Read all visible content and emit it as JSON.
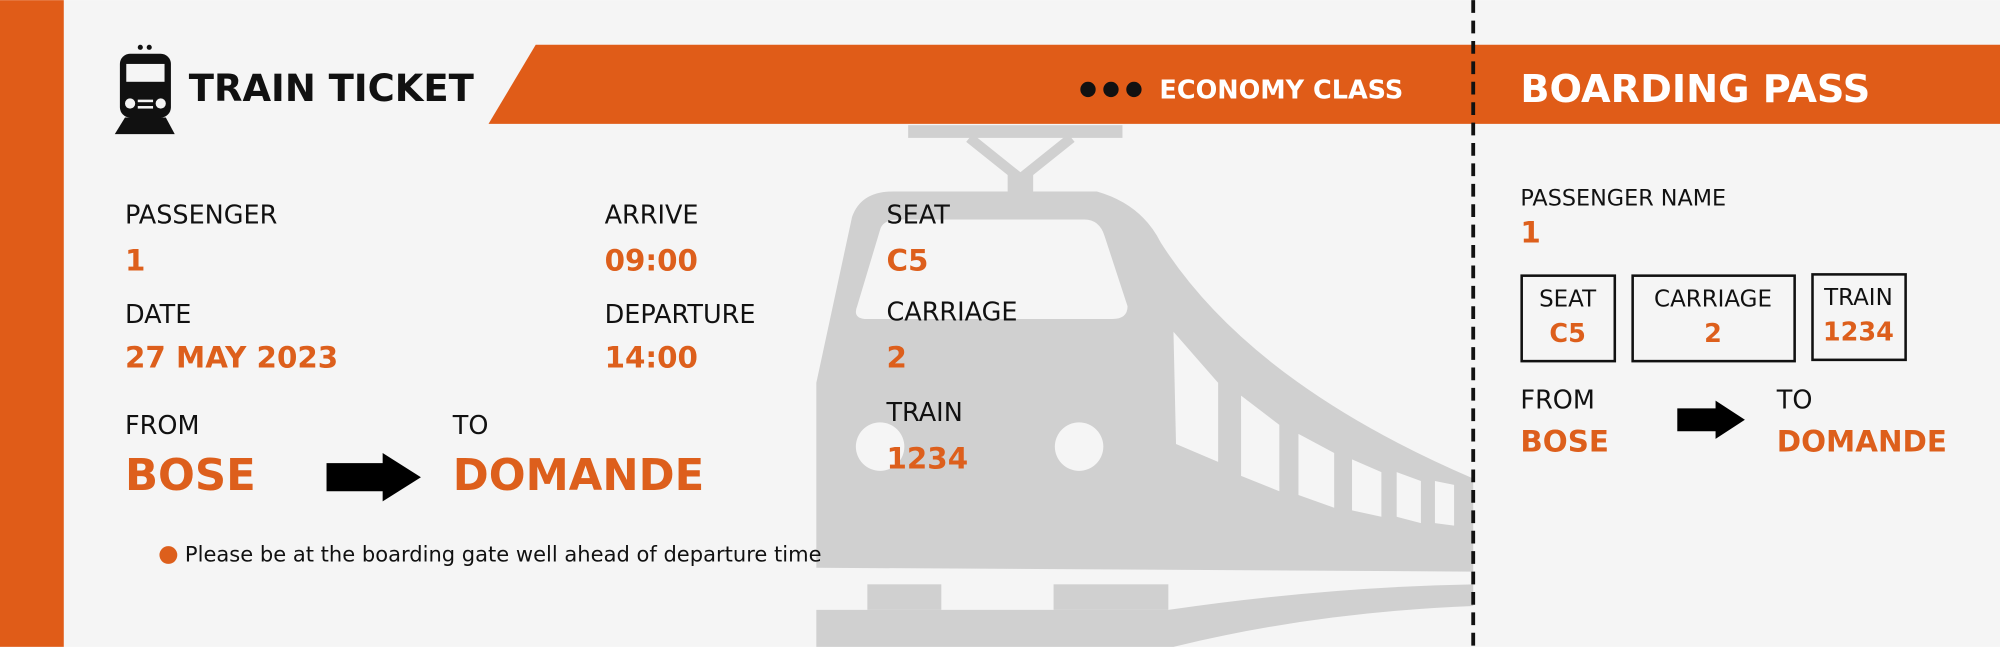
{
  "ticket": {
    "title": "TRAIN TICKET",
    "class": "ECONOMY CLASS",
    "passenger": {
      "label": "PASSENGER",
      "value": "1"
    },
    "date": {
      "label": "DATE",
      "value": "27 MAY 2023"
    },
    "arrive": {
      "label": "ARRIVE",
      "value": "09:00"
    },
    "departure": {
      "label": "DEPARTURE",
      "value": "14:00"
    },
    "seat": {
      "label": "SEAT",
      "value": "C5"
    },
    "carriage": {
      "label": "CARRIAGE",
      "value": "2"
    },
    "train": {
      "label": "TRAIN",
      "value": "1234"
    },
    "from": {
      "label": "FROM",
      "value": "BOSE"
    },
    "to": {
      "label": "TO",
      "value": "DOMANDE"
    },
    "note": "Please be at the boarding gate well ahead of departure time"
  },
  "boarding_pass": {
    "title": "BOARDING PASS",
    "passenger_name": {
      "label": "PASSENGER NAME",
      "value": "1"
    },
    "seat": {
      "label": "SEAT",
      "value": "C5"
    },
    "carriage": {
      "label": "CARRIAGE",
      "value": "2"
    },
    "train": {
      "label": "TRAIN",
      "value": "1234"
    },
    "from": {
      "label": "FROM",
      "value": "BOSE"
    },
    "to": {
      "label": "TO",
      "value": "DOMANDE"
    }
  }
}
